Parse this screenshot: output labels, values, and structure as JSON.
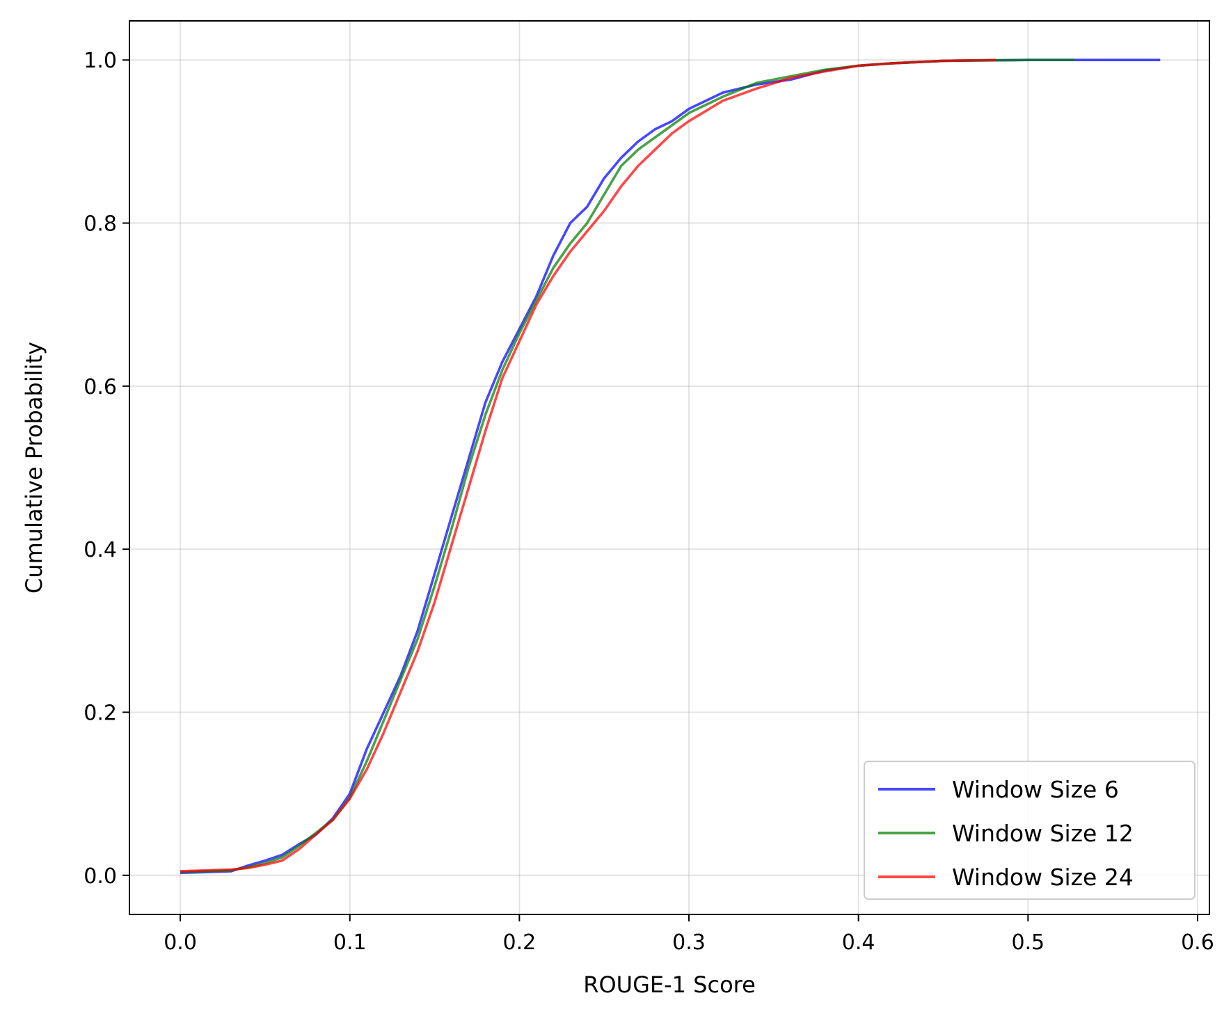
{
  "chart_data": {
    "type": "line",
    "title": "",
    "xlabel": "ROUGE-1 Score",
    "ylabel": "Cumulative Probability",
    "xlim": [
      -0.03,
      0.607
    ],
    "ylim": [
      -0.048,
      1.048
    ],
    "xticks": [
      "0.0",
      "0.1",
      "0.2",
      "0.3",
      "0.4",
      "0.5",
      "0.6"
    ],
    "yticks": [
      "0.0",
      "0.2",
      "0.4",
      "0.6",
      "0.8",
      "1.0"
    ],
    "grid": true,
    "legend_position": "lower-right",
    "series": [
      {
        "name": "Window Size 6",
        "color": "#0000ff",
        "x": [
          0.0,
          0.03,
          0.04,
          0.05,
          0.06,
          0.07,
          0.08,
          0.09,
          0.1,
          0.11,
          0.12,
          0.13,
          0.14,
          0.15,
          0.16,
          0.17,
          0.18,
          0.19,
          0.2,
          0.21,
          0.22,
          0.23,
          0.24,
          0.25,
          0.26,
          0.27,
          0.28,
          0.29,
          0.3,
          0.32,
          0.34,
          0.36,
          0.38,
          0.4,
          0.42,
          0.45,
          0.5,
          0.578
        ],
        "y": [
          0.003,
          0.005,
          0.012,
          0.018,
          0.025,
          0.038,
          0.05,
          0.07,
          0.1,
          0.155,
          0.2,
          0.245,
          0.3,
          0.37,
          0.44,
          0.51,
          0.58,
          0.63,
          0.67,
          0.71,
          0.76,
          0.8,
          0.82,
          0.855,
          0.88,
          0.9,
          0.915,
          0.925,
          0.94,
          0.96,
          0.97,
          0.976,
          0.987,
          0.993,
          0.996,
          0.999,
          1.0,
          1.0
        ]
      },
      {
        "name": "Window Size 12",
        "color": "#008000",
        "x": [
          0.0,
          0.03,
          0.04,
          0.05,
          0.06,
          0.07,
          0.08,
          0.09,
          0.1,
          0.11,
          0.12,
          0.13,
          0.14,
          0.15,
          0.16,
          0.17,
          0.18,
          0.19,
          0.2,
          0.21,
          0.22,
          0.23,
          0.24,
          0.25,
          0.26,
          0.27,
          0.28,
          0.29,
          0.3,
          0.32,
          0.34,
          0.36,
          0.38,
          0.4,
          0.42,
          0.45,
          0.5,
          0.527
        ],
        "y": [
          0.004,
          0.006,
          0.01,
          0.015,
          0.022,
          0.036,
          0.052,
          0.068,
          0.095,
          0.14,
          0.19,
          0.24,
          0.29,
          0.355,
          0.425,
          0.5,
          0.565,
          0.62,
          0.665,
          0.705,
          0.745,
          0.775,
          0.8,
          0.835,
          0.87,
          0.89,
          0.905,
          0.92,
          0.935,
          0.955,
          0.972,
          0.98,
          0.988,
          0.993,
          0.996,
          0.999,
          1.0,
          1.0
        ]
      },
      {
        "name": "Window Size 24",
        "color": "#ff0000",
        "x": [
          0.0,
          0.03,
          0.04,
          0.05,
          0.06,
          0.07,
          0.08,
          0.09,
          0.1,
          0.11,
          0.12,
          0.13,
          0.14,
          0.15,
          0.16,
          0.17,
          0.18,
          0.19,
          0.2,
          0.21,
          0.22,
          0.23,
          0.24,
          0.25,
          0.26,
          0.27,
          0.28,
          0.29,
          0.3,
          0.32,
          0.34,
          0.36,
          0.38,
          0.4,
          0.42,
          0.45,
          0.481
        ],
        "y": [
          0.005,
          0.007,
          0.009,
          0.013,
          0.018,
          0.032,
          0.05,
          0.068,
          0.094,
          0.13,
          0.175,
          0.225,
          0.275,
          0.335,
          0.405,
          0.475,
          0.545,
          0.61,
          0.655,
          0.7,
          0.735,
          0.765,
          0.79,
          0.815,
          0.845,
          0.87,
          0.89,
          0.91,
          0.925,
          0.95,
          0.965,
          0.978,
          0.986,
          0.993,
          0.996,
          0.999,
          1.0
        ]
      }
    ]
  }
}
